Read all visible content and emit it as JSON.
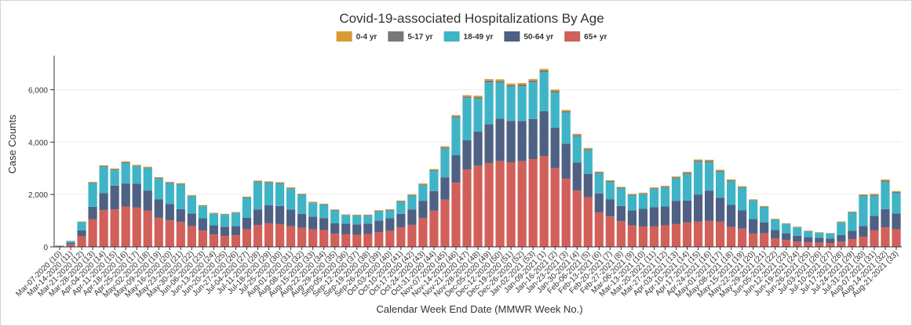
{
  "chart_data": {
    "type": "bar",
    "stacked": true,
    "title": "Covid-19-associated Hospitalizations By Age",
    "xlabel": "Calendar Week End Date (MMWR Week No.)",
    "ylabel": "Case Counts",
    "ylim": [
      0,
      7300
    ],
    "yticks": [
      0,
      2000,
      4000,
      6000
    ],
    "ytick_labels": [
      "0",
      "2,000",
      "4,000",
      "6,000"
    ],
    "grid": true,
    "legend_position": "top-center",
    "categories": [
      "Mar-07-2020 (10)",
      "Mar-14-2020 (11)",
      "Mar-21-2020 (12)",
      "Mar-28-2020 (13)",
      "Apr-04-2020 (14)",
      "Apr-11-2020 (15)",
      "Apr-18-2020 (16)",
      "Apr-25-2020 (17)",
      "May-02-2020 (18)",
      "May-09-2020 (19)",
      "May-16-2020 (20)",
      "May-23-2020 (21)",
      "May-30-2020 (22)",
      "Jun-06-2020 (23)",
      "Jun-13-2020 (24)",
      "Jun-20-2020 (25)",
      "Jun-27-2020 (26)",
      "Jul-04-2020 (27)",
      "Jul-11-2020 (28)",
      "Jul-18-2020 (29)",
      "Jul-25-2020 (30)",
      "Aug-01-2020 (31)",
      "Aug-08-2020 (32)",
      "Aug-15-2020 (33)",
      "Aug-22-2020 (34)",
      "Aug-29-2020 (35)",
      "Sep-05-2020 (36)",
      "Sep-12-2020 (37)",
      "Sep-19-2020 (38)",
      "Sep-26-2020 (39)",
      "Oct-03-2020 (40)",
      "Oct-10-2020 (41)",
      "Oct-17-2020 (42)",
      "Oct-24-2020 (43)",
      "Oct-31-2020 (44)",
      "Nov-07-2020 (45)",
      "Nov-14-2020 (46)",
      "Nov-21-2020 (47)",
      "Nov-28-2020 (48)",
      "Dec-05-2020 (49)",
      "Dec-12-2020 (50)",
      "Dec-19-2020 (51)",
      "Dec-26-2020 (52)",
      "Jan-02-2021 (53)",
      "Jan-09-2021 (1)",
      "Jan-16-2021 (2)",
      "Jan-23-2021 (3)",
      "Jan-30-2021 (4)",
      "Feb-06-2021 (5)",
      "Feb-13-2021 (6)",
      "Feb-20-2021 (7)",
      "Feb-27-2021 (8)",
      "Mar-06-2021 (9)",
      "Mar-13-2021 (10)",
      "Mar-20-2021 (11)",
      "Mar-27-2021 (12)",
      "Apr-03-2021 (13)",
      "Apr-10-2021 (14)",
      "Apr-17-2021 (15)",
      "Apr-24-2021 (16)",
      "May-01-2021 (17)",
      "May-08-2021 (18)",
      "May-15-2021 (19)",
      "May-22-2021 (20)",
      "May-29-2021 (21)",
      "Jun-05-2021 (22)",
      "Jun-12-2021 (23)",
      "Jun-19-2021 (24)",
      "Jun-26-2021 (25)",
      "Jul-03-2021 (26)",
      "Jul-10-2021 (27)",
      "Jul-17-2021 (28)",
      "Jul-24-2021 (29)",
      "Jul-31-2021 (30)",
      "Aug-07-2021 (31)",
      "Aug-14-2021 (32)",
      "Aug-21-2021 (33)"
    ],
    "series": [
      {
        "name": "65+ yr",
        "color": "#d1605a",
        "values": [
          20,
          100,
          400,
          1050,
          1400,
          1430,
          1540,
          1500,
          1380,
          1110,
          1010,
          950,
          790,
          620,
          470,
          420,
          440,
          670,
          830,
          900,
          870,
          790,
          730,
          670,
          640,
          500,
          480,
          460,
          490,
          560,
          610,
          750,
          840,
          1100,
          1380,
          1800,
          2450,
          2950,
          3100,
          3200,
          3280,
          3230,
          3270,
          3350,
          3470,
          3000,
          2600,
          2150,
          1890,
          1310,
          1160,
          980,
          820,
          780,
          780,
          820,
          870,
          930,
          960,
          990,
          960,
          760,
          700,
          510,
          520,
          320,
          260,
          200,
          170,
          160,
          150,
          200,
          300,
          390,
          630,
          740,
          670
        ]
      },
      {
        "name": "50-64 yr",
        "color": "#4f6183",
        "values": [
          15,
          60,
          230,
          480,
          650,
          910,
          880,
          910,
          770,
          700,
          620,
          490,
          480,
          470,
          360,
          350,
          350,
          440,
          590,
          690,
          690,
          630,
          530,
          480,
          460,
          400,
          410,
          400,
          400,
          440,
          480,
          510,
          590,
          650,
          750,
          850,
          1050,
          1120,
          1300,
          1480,
          1610,
          1580,
          1530,
          1530,
          1710,
          1550,
          1340,
          1070,
          900,
          730,
          650,
          580,
          570,
          670,
          730,
          720,
          890,
          840,
          1040,
          1160,
          920,
          840,
          700,
          550,
          410,
          330,
          250,
          220,
          200,
          190,
          170,
          250,
          320,
          410,
          550,
          700,
          600
        ]
      },
      {
        "name": "18-49 yr",
        "color": "#3fb4c6",
        "values": [
          15,
          60,
          320,
          900,
          1000,
          590,
          780,
          660,
          850,
          800,
          800,
          940,
          650,
          460,
          430,
          450,
          500,
          760,
          1050,
          850,
          850,
          790,
          720,
          520,
          500,
          490,
          310,
          330,
          300,
          350,
          300,
          450,
          520,
          600,
          760,
          1100,
          1430,
          1610,
          1250,
          1600,
          1380,
          1300,
          1330,
          1400,
          1490,
          1340,
          1180,
          1000,
          900,
          760,
          670,
          670,
          570,
          560,
          700,
          720,
          850,
          1010,
          1240,
          1080,
          980,
          900,
          850,
          700,
          580,
          380,
          350,
          320,
          220,
          180,
          180,
          480,
          680,
          1140,
          760,
          1040,
          780
        ]
      },
      {
        "name": "5-17 yr",
        "color": "#787878",
        "values": [
          0,
          5,
          10,
          25,
          30,
          30,
          30,
          30,
          30,
          25,
          25,
          25,
          25,
          20,
          20,
          20,
          20,
          25,
          30,
          30,
          30,
          30,
          25,
          25,
          25,
          20,
          20,
          20,
          20,
          25,
          25,
          30,
          30,
          35,
          40,
          45,
          50,
          55,
          60,
          65,
          65,
          65,
          65,
          65,
          65,
          60,
          55,
          50,
          45,
          40,
          35,
          30,
          30,
          30,
          30,
          35,
          40,
          45,
          50,
          50,
          45,
          40,
          35,
          30,
          25,
          20,
          20,
          15,
          15,
          15,
          15,
          20,
          25,
          35,
          45,
          50,
          45
        ]
      },
      {
        "name": "0-4 yr",
        "color": "#d99b35",
        "values": [
          0,
          5,
          10,
          25,
          30,
          30,
          30,
          30,
          30,
          30,
          30,
          30,
          25,
          25,
          20,
          20,
          20,
          25,
          30,
          30,
          30,
          30,
          25,
          25,
          25,
          20,
          20,
          20,
          20,
          25,
          25,
          30,
          30,
          35,
          40,
          45,
          50,
          55,
          60,
          60,
          60,
          60,
          60,
          60,
          60,
          55,
          50,
          45,
          40,
          35,
          30,
          30,
          30,
          30,
          30,
          35,
          35,
          40,
          45,
          45,
          40,
          35,
          30,
          25,
          25,
          20,
          20,
          15,
          15,
          15,
          15,
          20,
          25,
          30,
          40,
          40,
          35
        ]
      }
    ]
  }
}
